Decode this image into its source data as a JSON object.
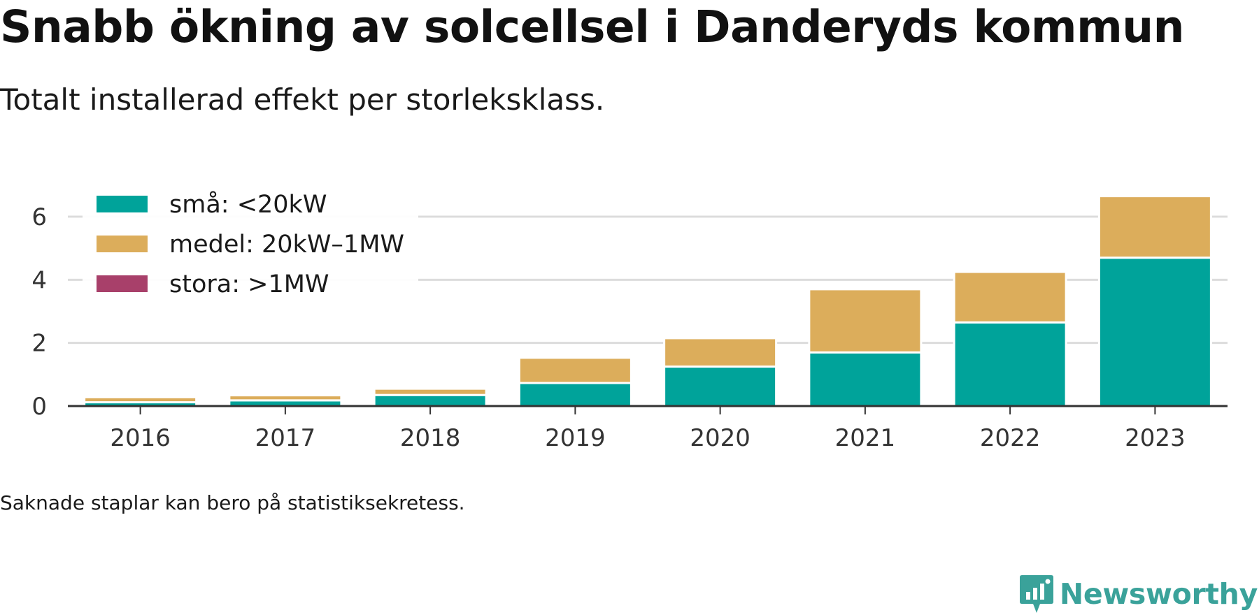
{
  "title": "Snabb ökning av solcellsel i Danderyds kommun",
  "subtitle": "Totalt installerad effekt per storleksklass.",
  "footnote": "Saknade staplar kan bero på statistiksekretess.",
  "brand": {
    "name": "Newsworthy",
    "icon": "newsworthy-logo-icon",
    "color": "#3aa29a"
  },
  "chart_data": {
    "type": "bar",
    "stacked": true,
    "categories": [
      "2016",
      "2017",
      "2018",
      "2019",
      "2020",
      "2021",
      "2022",
      "2023"
    ],
    "series": [
      {
        "name": "små: <20kW",
        "color": "#00a39a",
        "values": [
          0.12,
          0.18,
          0.35,
          0.73,
          1.25,
          1.7,
          2.65,
          4.7
        ]
      },
      {
        "name": "medel: 20kW–1MW",
        "color": "#dcad5b",
        "values": [
          0.16,
          0.16,
          0.2,
          0.8,
          0.9,
          2.0,
          1.6,
          1.95
        ]
      },
      {
        "name": "stora: >1MW",
        "color": "#a8406a",
        "values": [
          0,
          0,
          0,
          0,
          0,
          0,
          0,
          0
        ]
      }
    ],
    "ylim": [
      0,
      6.7
    ],
    "yticks": [
      0,
      2,
      4,
      6
    ],
    "grid": true,
    "legend_position": "top-left",
    "xlabel": "",
    "ylabel": ""
  }
}
